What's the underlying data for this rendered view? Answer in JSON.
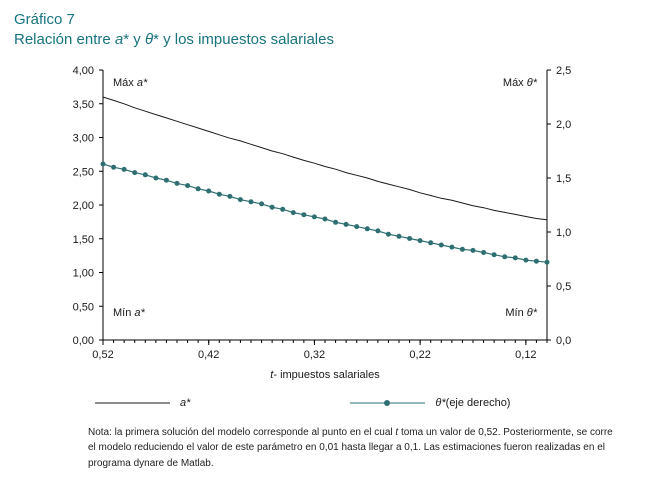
{
  "header": {
    "title": "Gráfico 7",
    "subtitle_pre": "Relación entre ",
    "subtitle_var1": "a",
    "subtitle_mid": "* y ",
    "subtitle_var2": "θ",
    "subtitle_post": "* y los impuestos salariales"
  },
  "legend": {
    "series1_label": "a*",
    "series2_label_var": "θ*",
    "series2_label_rest": " (eje derecho)"
  },
  "note": {
    "part1": "Nota: la primera solución del modelo corresponde al punto en el cual ",
    "italic_var": "t",
    "part2": " toma un valor de 0,52. Posteriormente, se corre el modelo reduciendo el valor de este parámetro en 0,01 hasta llegar a 0,1. Las estimaciones fueron realizadas en el programa dynare de Matlab."
  },
  "colors": {
    "title_teal": "#17747e",
    "a_line": "#1a1a1a",
    "theta_line": "#2e6f71",
    "axis": "#000000"
  },
  "chart_data": {
    "type": "line",
    "title": "Gráfico 7",
    "subtitle": "Relación entre a* y θ* y los impuestos salariales",
    "xlabel_italic": "t",
    "xlabel_rest": "- impuestos salariales",
    "x": [
      0.52,
      0.51,
      0.5,
      0.49,
      0.48,
      0.47,
      0.46,
      0.45,
      0.44,
      0.43,
      0.42,
      0.41,
      0.4,
      0.39,
      0.38,
      0.37,
      0.36,
      0.35,
      0.34,
      0.33,
      0.32,
      0.31,
      0.3,
      0.29,
      0.28,
      0.27,
      0.26,
      0.25,
      0.24,
      0.23,
      0.22,
      0.21,
      0.2,
      0.19,
      0.18,
      0.17,
      0.16,
      0.15,
      0.14,
      0.13,
      0.12,
      0.11,
      0.1
    ],
    "x_axis": {
      "start": 0.52,
      "end": 0.1,
      "tick_values": [
        0.52,
        0.42,
        0.32,
        0.22,
        0.12
      ],
      "tick_labels": [
        "0,52",
        "0,42",
        "0,32",
        "0,22",
        "0,12"
      ],
      "minor_step": 0.01
    },
    "left_axis": {
      "min": 0,
      "max": 4,
      "step": 0.5,
      "tick_labels": [
        "0,00",
        "0,50",
        "1,00",
        "1,50",
        "2,00",
        "2,50",
        "3,00",
        "3,50",
        "4,00"
      ]
    },
    "right_axis": {
      "min": 0,
      "max": 2.5,
      "step": 0.5,
      "tick_labels": [
        "0,0",
        "0,5",
        "1,0",
        "1,5",
        "2,0",
        "2,5"
      ]
    },
    "series": [
      {
        "name": "a*",
        "axis": "left",
        "color": "#1a1a1a",
        "markers": false,
        "values": [
          3.6,
          3.55,
          3.5,
          3.44,
          3.39,
          3.34,
          3.29,
          3.24,
          3.19,
          3.14,
          3.09,
          3.04,
          2.99,
          2.95,
          2.9,
          2.85,
          2.8,
          2.76,
          2.71,
          2.66,
          2.62,
          2.57,
          2.53,
          2.48,
          2.44,
          2.4,
          2.35,
          2.31,
          2.27,
          2.23,
          2.18,
          2.14,
          2.1,
          2.07,
          2.03,
          1.99,
          1.96,
          1.92,
          1.89,
          1.86,
          1.83,
          1.8,
          1.78
        ]
      },
      {
        "name": "θ* (eje derecho)",
        "axis": "right",
        "color": "#2e6f71",
        "markers": true,
        "values": [
          1.63,
          1.6,
          1.58,
          1.55,
          1.53,
          1.5,
          1.48,
          1.45,
          1.43,
          1.4,
          1.38,
          1.35,
          1.33,
          1.3,
          1.28,
          1.26,
          1.23,
          1.21,
          1.18,
          1.16,
          1.14,
          1.12,
          1.09,
          1.07,
          1.05,
          1.03,
          1.01,
          0.98,
          0.96,
          0.94,
          0.92,
          0.9,
          0.88,
          0.86,
          0.84,
          0.83,
          0.81,
          0.79,
          0.77,
          0.76,
          0.74,
          0.73,
          0.72
        ]
      }
    ],
    "annotations": [
      {
        "prefix": "Máx ",
        "variable": "a*",
        "position": "top-left"
      },
      {
        "prefix": "Máx ",
        "variable": "θ*",
        "position": "top-right"
      },
      {
        "prefix": "Mín ",
        "variable": "a*",
        "position": "bottom-left"
      },
      {
        "prefix": "Mín ",
        "variable": "θ*",
        "position": "bottom-right"
      }
    ]
  }
}
